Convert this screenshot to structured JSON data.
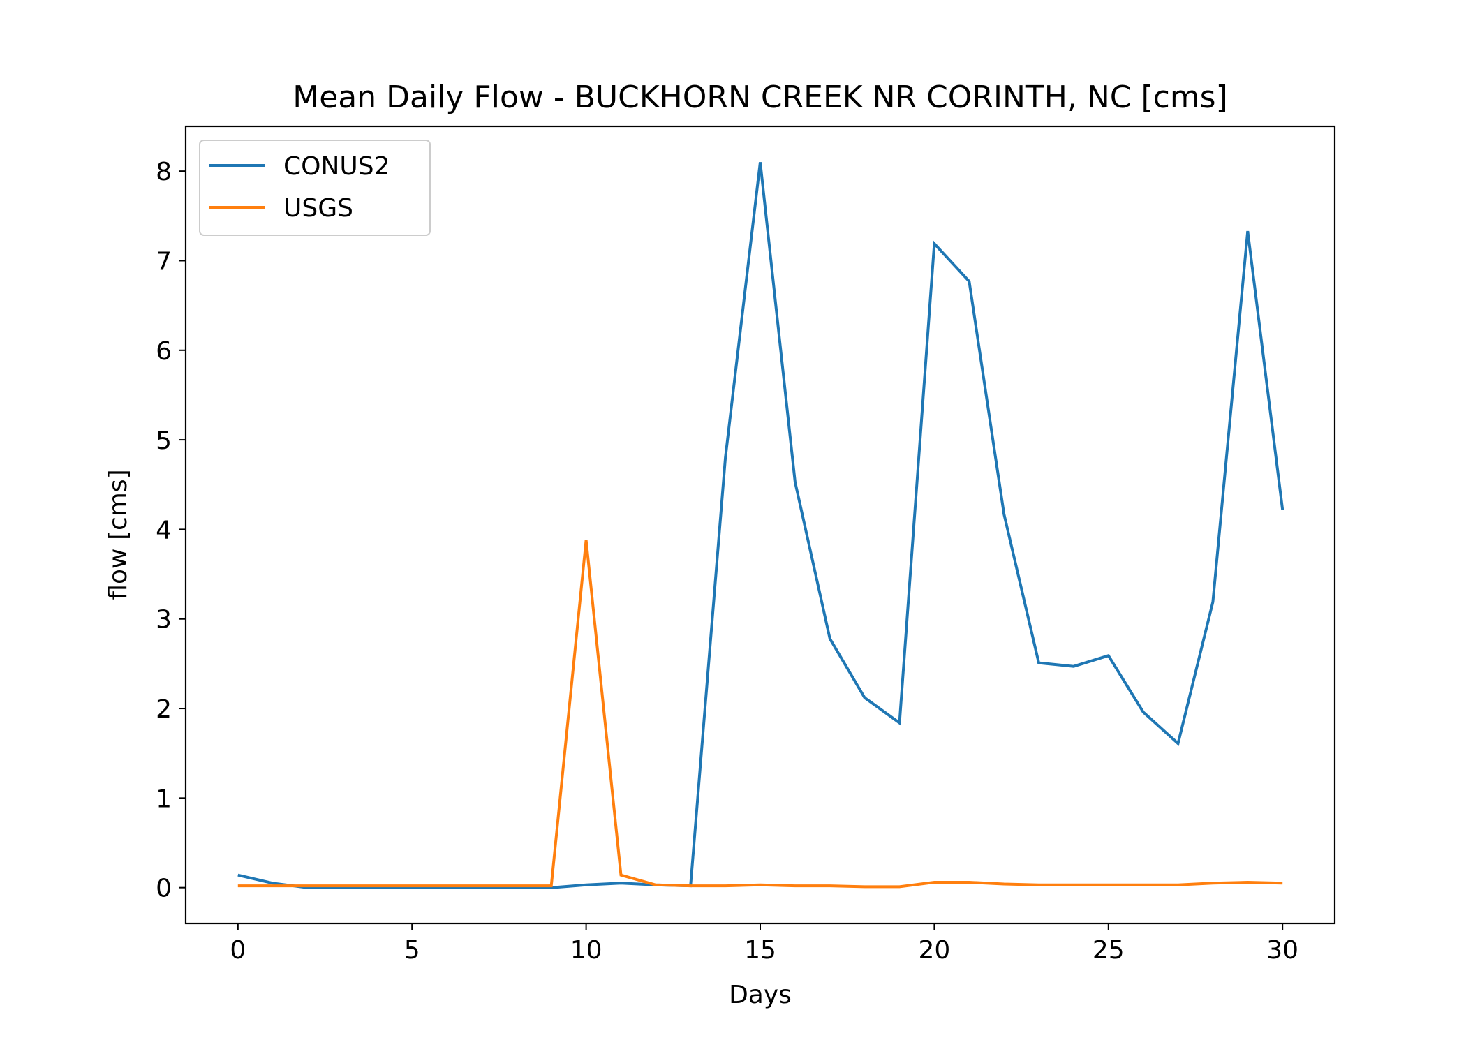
{
  "chart_data": {
    "type": "line",
    "title": "Mean Daily Flow - BUCKHORN CREEK NR CORINTH, NC [cms]",
    "xlabel": "Days",
    "ylabel": "flow [cms]",
    "xlim": [
      -1.5,
      31.5
    ],
    "ylim": [
      -0.4,
      8.5
    ],
    "xticks": [
      0,
      5,
      10,
      15,
      20,
      25,
      30
    ],
    "yticks": [
      0,
      1,
      2,
      3,
      4,
      5,
      6,
      7,
      8
    ],
    "grid": false,
    "legend_position": "top-left",
    "x": [
      0,
      1,
      2,
      3,
      4,
      5,
      6,
      7,
      8,
      9,
      10,
      11,
      12,
      13,
      14,
      15,
      16,
      17,
      18,
      19,
      20,
      21,
      22,
      23,
      24,
      25,
      26,
      27,
      28,
      29,
      30
    ],
    "series": [
      {
        "name": "CONUS2",
        "color": "#1f77b4",
        "values": [
          0.14,
          0.05,
          0.0,
          0.0,
          0.0,
          0.0,
          0.0,
          0.0,
          0.0,
          0.0,
          0.03,
          0.05,
          0.03,
          0.02,
          4.8,
          8.1,
          4.53,
          2.78,
          2.12,
          1.84,
          7.19,
          6.77,
          4.17,
          2.51,
          2.47,
          2.59,
          1.96,
          1.61,
          3.19,
          7.33,
          4.22
        ]
      },
      {
        "name": "USGS",
        "color": "#ff7f0e",
        "values": [
          0.02,
          0.02,
          0.02,
          0.02,
          0.02,
          0.02,
          0.02,
          0.02,
          0.02,
          0.02,
          3.88,
          0.14,
          0.03,
          0.02,
          0.02,
          0.03,
          0.02,
          0.02,
          0.01,
          0.01,
          0.06,
          0.06,
          0.04,
          0.03,
          0.03,
          0.03,
          0.03,
          0.03,
          0.05,
          0.06,
          0.05
        ]
      }
    ]
  }
}
